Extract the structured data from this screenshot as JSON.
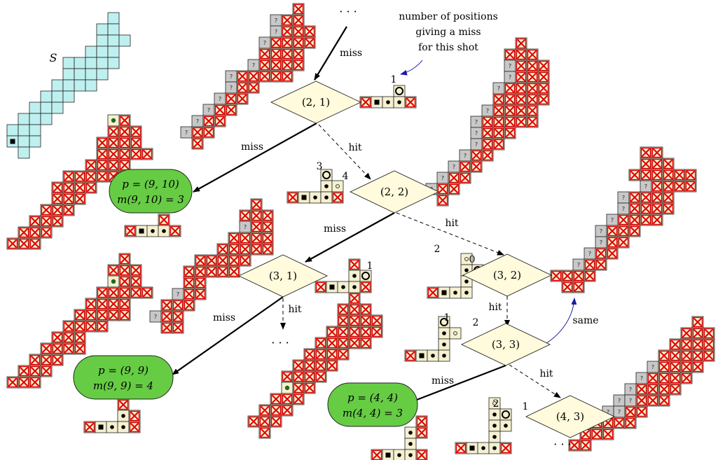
{
  "colors": {
    "cyan": "#bff0f0",
    "cream": "#f5f0d0",
    "gray": "#c8c8c8",
    "red": "#e00000",
    "green": "#66cc44",
    "diamond_fill": "#fffbdc",
    "dark_green": "#1f6b1f",
    "note_arrow": "#1a1aa8"
  },
  "labels": {
    "set_s": "S",
    "top_dots": "· · ·",
    "note_line1": "number of positions",
    "note_line2": "giving a miss",
    "note_line3": "for this shot",
    "hit": "hit",
    "miss": "miss",
    "same": "same",
    "dots": "· · ·",
    "qmark": "?"
  },
  "nodes": [
    {
      "id": "n21",
      "label": "(2, 1)"
    },
    {
      "id": "n22",
      "label": "(2, 2)"
    },
    {
      "id": "n31",
      "label": "(3, 1)"
    },
    {
      "id": "n32",
      "label": "(3, 2)"
    },
    {
      "id": "n33",
      "label": "(3, 3)"
    },
    {
      "id": "n43",
      "label": "(4, 3)"
    }
  ],
  "terminals": [
    {
      "id": "t910",
      "p": "p = (9, 10)",
      "m": "m(9, 10) = 3"
    },
    {
      "id": "t99",
      "p": "p = (9, 9)",
      "m": "m(9, 9) = 4"
    },
    {
      "id": "t44",
      "p": "p = (4, 4)",
      "m": "m(4, 4) = 3"
    }
  ],
  "counts": {
    "c21": "1",
    "c22a": "3",
    "c22b": "4",
    "c31": "1",
    "c32a": "2",
    "c32b": "0",
    "c33a": "1",
    "c33b": "2",
    "c43a": "2",
    "c43b": "1"
  }
}
